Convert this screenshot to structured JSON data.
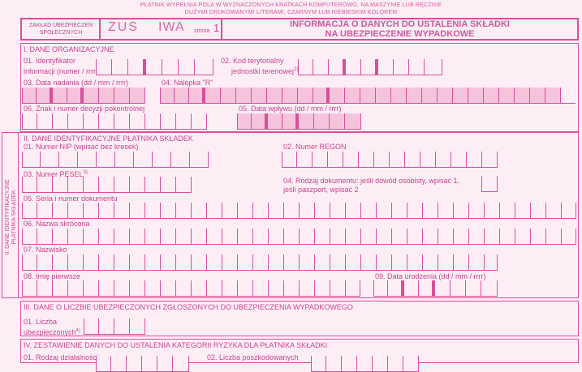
{
  "header": {
    "line1": "PŁATNIK WYPEŁNIA POLA W WYZNACZONYCH KRATKACH KOMPUTEROWO, NA MASZYNIE LUB RĘCZNIE",
    "line2": "DUŻYMI DRUKOWANYMI LITERAMI, CZARNYM LUB NIEBIESKIM KOLOREM"
  },
  "title_bar": {
    "institution": "ZAKŁAD UBEZPIECZEŃ SPOŁECZNYCH",
    "zus": "ZUS",
    "form_code": "IWA",
    "page_label": "strona",
    "page_number": "1",
    "form_title_line1": "INFORMACJA O DANYCH DO USTALENIA SKŁADKI",
    "form_title_line2": "NA UBEZPIECZENIE WYPADKOWE"
  },
  "section1": {
    "title": "I. DANE ORGANIZACYJNE",
    "f01_line1": "01. Identyfikator",
    "f01_line2": "informacji (numer / rrrr)",
    "f01_sup": "1)",
    "f02_line1": "02. Kod terytorialny",
    "f02_line2": "jednostki terenowej",
    "f02_sup": "2)",
    "f03": "03. Data nadania (dd / mm / rrrr)",
    "f04": "04. Nalepka \"R\"",
    "f06": "06. Znak i numer decyzji pokontrolnej",
    "f05": "05. Data wpływu (dd / mm / rrrr)"
  },
  "section2": {
    "side_label_line1": "II. DANE IDENTYFIKACYJNE",
    "side_label_line2": "PŁATNIKA SKŁADEK",
    "title": "II. DANE IDENTYFIKACYJNE PŁATNIKA SKŁADEK",
    "f01": "01. Numer NIP (wpisać bez kresek)",
    "f02": "02. Numer REGON",
    "f03": "03. Numer PESEL",
    "f03_sup": "3)",
    "f04_line1": "04. Rodzaj dokumentu: jeśli dowód osobisty, wpisać 1,",
    "f04_line2": "jeśli paszport, wpisać 2",
    "f05": "05. Seria i numer dokumentu",
    "f06": "06. Nazwa skrócona",
    "f07": "07. Nazwisko",
    "f08": "08. Imię pierwsze",
    "f09": "09. Data urodzenia (dd / mm / rrrr)"
  },
  "section3": {
    "title": "III. DANE O LICZBIE UBEZPIECZONYCH ZGŁOSZONYCH DO UBEZPIECZENIA WYPADKOWEGO",
    "f01_line1": "01. Liczba",
    "f01_line2": "ubezpieczonych",
    "f01_sup": "4)"
  },
  "section4": {
    "title": "IV. ZESTAWIENIE DANYCH DO USTALENIA KATEGORII RYZYKA DLA PŁATNIKA SKŁADKI",
    "f01": "01. Rodzaj działalności",
    "f02": "02. Liczba poszkodowanych"
  }
}
